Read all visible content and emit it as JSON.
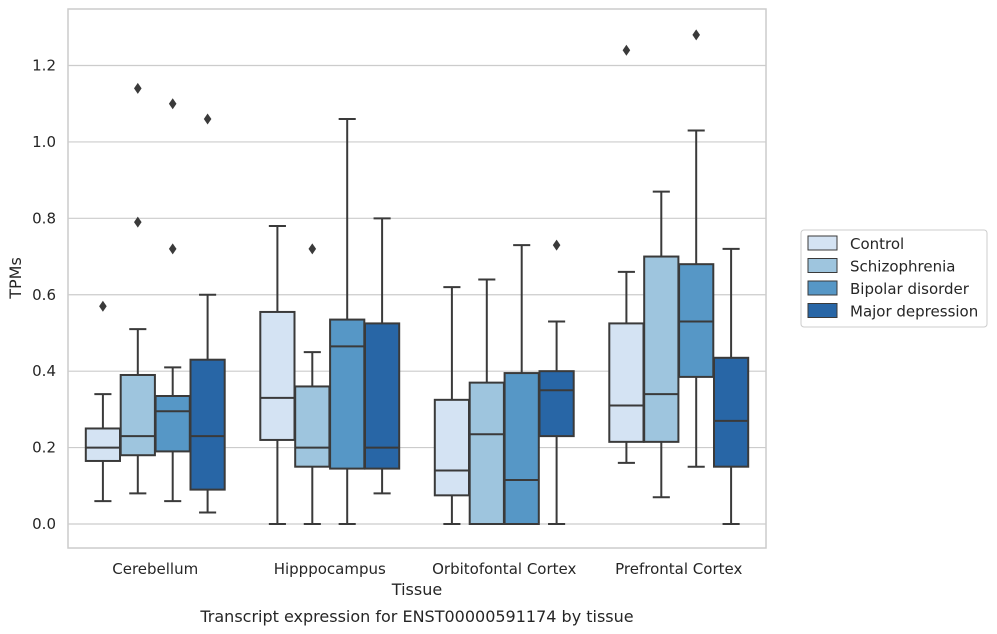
{
  "caption": "Transcript expression for ENST00000591174 by tissue",
  "chart_data": {
    "type": "boxplot",
    "xlabel": "Tissue",
    "ylabel": "TPMs",
    "ylim": [
      -0.06,
      1.35
    ],
    "yticks": [
      "0.0",
      "0.2",
      "0.4",
      "0.6",
      "0.8",
      "1.0",
      "1.2"
    ],
    "grid": true,
    "legend_position": "right",
    "categories": [
      "Cerebellum",
      "Hipppocampus",
      "Orbitofontal Cortex",
      "Prefrontal Cortex"
    ],
    "series": [
      {
        "name": "Control",
        "color": "#d4e3f3",
        "boxes": [
          {
            "whisker_low": 0.06,
            "q1": 0.165,
            "median": 0.2,
            "q3": 0.25,
            "whisker_high": 0.34,
            "outliers": [
              0.57
            ]
          },
          {
            "whisker_low": 0.0,
            "q1": 0.22,
            "median": 0.33,
            "q3": 0.555,
            "whisker_high": 0.78,
            "outliers": []
          },
          {
            "whisker_low": 0.0,
            "q1": 0.075,
            "median": 0.14,
            "q3": 0.325,
            "whisker_high": 0.62,
            "outliers": []
          },
          {
            "whisker_low": 0.16,
            "q1": 0.215,
            "median": 0.31,
            "q3": 0.525,
            "whisker_high": 0.66,
            "outliers": [
              1.24
            ]
          }
        ]
      },
      {
        "name": "Schizophrenia",
        "color": "#9ec5de",
        "boxes": [
          {
            "whisker_low": 0.08,
            "q1": 0.18,
            "median": 0.23,
            "q3": 0.39,
            "whisker_high": 0.51,
            "outliers": [
              0.79,
              1.14
            ]
          },
          {
            "whisker_low": 0.0,
            "q1": 0.15,
            "median": 0.2,
            "q3": 0.36,
            "whisker_high": 0.45,
            "outliers": [
              0.72
            ]
          },
          {
            "whisker_low": 0.0,
            "q1": 0.0,
            "median": 0.235,
            "q3": 0.37,
            "whisker_high": 0.64,
            "outliers": []
          },
          {
            "whisker_low": 0.07,
            "q1": 0.215,
            "median": 0.34,
            "q3": 0.7,
            "whisker_high": 0.87,
            "outliers": []
          }
        ]
      },
      {
        "name": "Bipolar disorder",
        "color": "#5697c6",
        "boxes": [
          {
            "whisker_low": 0.06,
            "q1": 0.19,
            "median": 0.295,
            "q3": 0.335,
            "whisker_high": 0.41,
            "outliers": [
              0.72,
              1.1
            ]
          },
          {
            "whisker_low": 0.0,
            "q1": 0.145,
            "median": 0.465,
            "q3": 0.535,
            "whisker_high": 1.06,
            "outliers": []
          },
          {
            "whisker_low": 0.0,
            "q1": 0.0,
            "median": 0.115,
            "q3": 0.395,
            "whisker_high": 0.73,
            "outliers": []
          },
          {
            "whisker_low": 0.15,
            "q1": 0.385,
            "median": 0.53,
            "q3": 0.68,
            "whisker_high": 1.03,
            "outliers": [
              1.28
            ]
          }
        ]
      },
      {
        "name": "Major depression",
        "color": "#2866a6",
        "boxes": [
          {
            "whisker_low": 0.03,
            "q1": 0.09,
            "median": 0.23,
            "q3": 0.43,
            "whisker_high": 0.6,
            "outliers": [
              1.06
            ]
          },
          {
            "whisker_low": 0.08,
            "q1": 0.145,
            "median": 0.2,
            "q3": 0.525,
            "whisker_high": 0.8,
            "outliers": []
          },
          {
            "whisker_low": 0.0,
            "q1": 0.23,
            "median": 0.35,
            "q3": 0.4,
            "whisker_high": 0.53,
            "outliers": [
              0.73
            ]
          },
          {
            "whisker_low": 0.0,
            "q1": 0.15,
            "median": 0.27,
            "q3": 0.435,
            "whisker_high": 0.72,
            "outliers": []
          }
        ]
      }
    ]
  }
}
